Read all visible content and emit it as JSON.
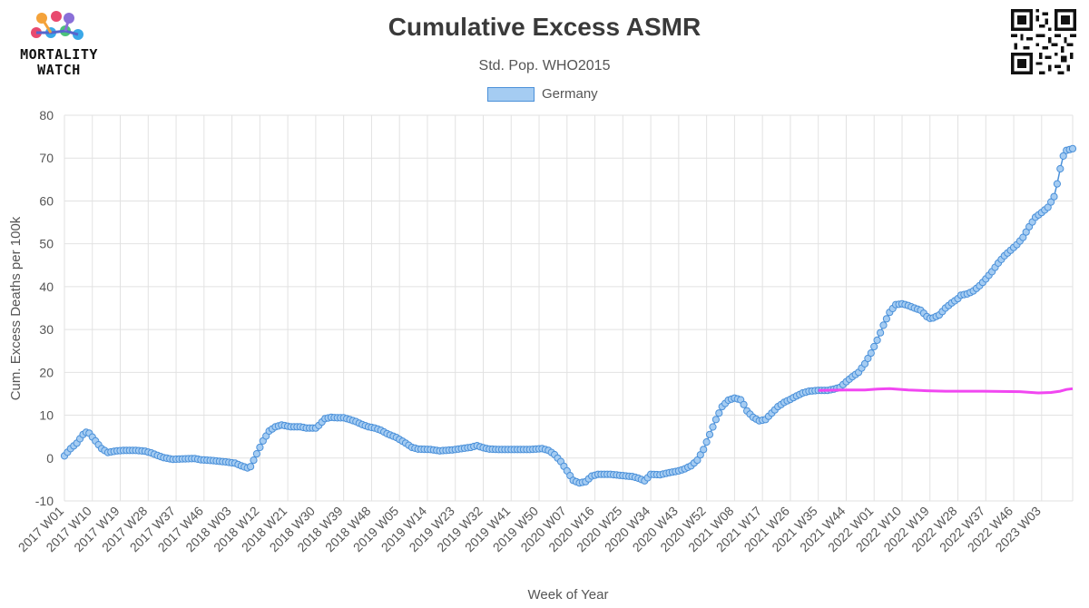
{
  "brand": {
    "line1": "MORTALITY",
    "line2": "WATCH"
  },
  "chart_data": {
    "type": "line",
    "title": "Cumulative Excess ASMR",
    "subtitle": "Std. Pop. WHO2015",
    "xlabel": "Week of Year",
    "ylabel": "Cum. Excess Deaths per 100k",
    "ylim": [
      -10,
      80
    ],
    "yticks": [
      "80",
      "70",
      "60",
      "50",
      "40",
      "30",
      "20",
      "10",
      "0",
      "-10"
    ],
    "grid": true,
    "legend_position": "top-center",
    "x_tick_labels": [
      "2017 W01",
      "2017 W10",
      "2017 W19",
      "2017 W28",
      "2017 W37",
      "2017 W46",
      "2018 W03",
      "2018 W12",
      "2018 W21",
      "2018 W30",
      "2018 W39",
      "2018 W48",
      "2019 W05",
      "2019 W14",
      "2019 W23",
      "2019 W32",
      "2019 W41",
      "2019 W50",
      "2020 W07",
      "2020 W16",
      "2020 W25",
      "2020 W34",
      "2020 W43",
      "2020 W52",
      "2021 W08",
      "2021 W17",
      "2021 W26",
      "2021 W35",
      "2021 W44",
      "2022 W01",
      "2022 W10",
      "2022 W19",
      "2022 W28",
      "2022 W37",
      "2022 W46",
      "2023 W03"
    ],
    "x_tick_values": [
      0,
      9,
      18,
      27,
      36,
      45,
      54,
      63,
      72,
      81,
      90,
      99,
      108,
      117,
      126,
      135,
      144,
      153,
      162,
      171,
      180,
      189,
      198,
      207,
      216,
      225,
      234,
      243,
      252,
      261,
      270,
      279,
      288,
      297,
      306,
      315
    ],
    "series": [
      {
        "name": "Germany",
        "color": "#4a90d9",
        "fill": "#a5ccf2",
        "points": [
          [
            0,
            0.5
          ],
          [
            2,
            2.2
          ],
          [
            4,
            3.5
          ],
          [
            6,
            5.5
          ],
          [
            7,
            6
          ],
          [
            8,
            5.8
          ],
          [
            10,
            4
          ],
          [
            12,
            2.2
          ],
          [
            14,
            1.3
          ],
          [
            17,
            1.7
          ],
          [
            20,
            1.8
          ],
          [
            23,
            1.8
          ],
          [
            26,
            1.6
          ],
          [
            28,
            1.2
          ],
          [
            30,
            0.6
          ],
          [
            32,
            0.1
          ],
          [
            35,
            -0.3
          ],
          [
            38,
            -0.2
          ],
          [
            42,
            -0.1
          ],
          [
            44,
            -0.4
          ],
          [
            48,
            -0.6
          ],
          [
            52,
            -0.9
          ],
          [
            55,
            -1.2
          ],
          [
            57,
            -1.8
          ],
          [
            59,
            -2.3
          ],
          [
            60,
            -2
          ],
          [
            62,
            1
          ],
          [
            64,
            4
          ],
          [
            66,
            6.3
          ],
          [
            68,
            7.3
          ],
          [
            70,
            7.7
          ],
          [
            73,
            7.3
          ],
          [
            76,
            7.3
          ],
          [
            78,
            7
          ],
          [
            81,
            7
          ],
          [
            82,
            7.6
          ],
          [
            84,
            9.2
          ],
          [
            86,
            9.5
          ],
          [
            88,
            9.4
          ],
          [
            90,
            9.4
          ],
          [
            92,
            9
          ],
          [
            94,
            8.5
          ],
          [
            96,
            7.8
          ],
          [
            98,
            7.3
          ],
          [
            100,
            7
          ],
          [
            102,
            6.5
          ],
          [
            104,
            5.7
          ],
          [
            107,
            4.8
          ],
          [
            110,
            3.5
          ],
          [
            112,
            2.5
          ],
          [
            114,
            2.1
          ],
          [
            118,
            2
          ],
          [
            121,
            1.7
          ],
          [
            125,
            1.9
          ],
          [
            128,
            2.2
          ],
          [
            131,
            2.5
          ],
          [
            133,
            2.9
          ],
          [
            135,
            2.4
          ],
          [
            137,
            2.1
          ],
          [
            140,
            2
          ],
          [
            145,
            2
          ],
          [
            150,
            2
          ],
          [
            154,
            2.2
          ],
          [
            156,
            1.8
          ],
          [
            158,
            0.8
          ],
          [
            160,
            -0.8
          ],
          [
            162,
            -3
          ],
          [
            164,
            -5.2
          ],
          [
            166,
            -5.8
          ],
          [
            168,
            -5.5
          ],
          [
            170,
            -4.2
          ],
          [
            172,
            -3.8
          ],
          [
            176,
            -3.8
          ],
          [
            180,
            -4.1
          ],
          [
            183,
            -4.3
          ],
          [
            185,
            -4.7
          ],
          [
            187,
            -5.3
          ],
          [
            188,
            -4.6
          ],
          [
            189,
            -3.8
          ],
          [
            192,
            -3.9
          ],
          [
            195,
            -3.4
          ],
          [
            198,
            -3
          ],
          [
            200,
            -2.5
          ],
          [
            202,
            -1.8
          ],
          [
            204,
            -0.5
          ],
          [
            206,
            2
          ],
          [
            208,
            5.5
          ],
          [
            210,
            9
          ],
          [
            212,
            12
          ],
          [
            214,
            13.5
          ],
          [
            216,
            14
          ],
          [
            218,
            13.6
          ],
          [
            219,
            12.5
          ],
          [
            220,
            11
          ],
          [
            222,
            9.5
          ],
          [
            224,
            8.7
          ],
          [
            226,
            9
          ],
          [
            228,
            10.5
          ],
          [
            230,
            12
          ],
          [
            232,
            13
          ],
          [
            234,
            13.7
          ],
          [
            236,
            14.5
          ],
          [
            238,
            15.2
          ],
          [
            240,
            15.6
          ],
          [
            243,
            15.8
          ],
          [
            246,
            15.8
          ],
          [
            248,
            16.1
          ],
          [
            250,
            16.5
          ],
          [
            252,
            17.8
          ],
          [
            254,
            19
          ],
          [
            256,
            20
          ],
          [
            258,
            22
          ],
          [
            260,
            24.5
          ],
          [
            262,
            27.5
          ],
          [
            264,
            31
          ],
          [
            266,
            34
          ],
          [
            268,
            35.8
          ],
          [
            270,
            36
          ],
          [
            272,
            35.6
          ],
          [
            274,
            35
          ],
          [
            276,
            34.5
          ],
          [
            277,
            33.8
          ],
          [
            278,
            33
          ],
          [
            279,
            32.6
          ],
          [
            280,
            32.7
          ],
          [
            282,
            33.4
          ],
          [
            284,
            35
          ],
          [
            286,
            36.2
          ],
          [
            288,
            37.2
          ],
          [
            289,
            38
          ],
          [
            291,
            38.3
          ],
          [
            293,
            39
          ],
          [
            295,
            40.2
          ],
          [
            297,
            41.8
          ],
          [
            299,
            43.5
          ],
          [
            301,
            45.5
          ],
          [
            303,
            47.2
          ],
          [
            305,
            48.5
          ],
          [
            307,
            49.8
          ],
          [
            309,
            51.5
          ],
          [
            311,
            54
          ],
          [
            313,
            56.2
          ],
          [
            315,
            57.3
          ],
          [
            317,
            58.5
          ],
          [
            319,
            61
          ],
          [
            320,
            64
          ],
          [
            321,
            67.5
          ],
          [
            322,
            70.5
          ],
          [
            323,
            71.8
          ],
          [
            324,
            72
          ],
          [
            325,
            72.2
          ]
        ]
      },
      {
        "name": "",
        "color": "#f147f1",
        "points": [
          [
            243,
            15.8
          ],
          [
            252,
            15.9
          ],
          [
            258,
            15.9
          ],
          [
            262,
            16.1
          ],
          [
            266,
            16.2
          ],
          [
            272,
            15.9
          ],
          [
            278,
            15.7
          ],
          [
            284,
            15.6
          ],
          [
            296,
            15.6
          ],
          [
            308,
            15.5
          ],
          [
            314,
            15.2
          ],
          [
            318,
            15.3
          ],
          [
            321,
            15.6
          ],
          [
            323,
            16
          ],
          [
            325,
            16.2
          ]
        ]
      }
    ]
  }
}
